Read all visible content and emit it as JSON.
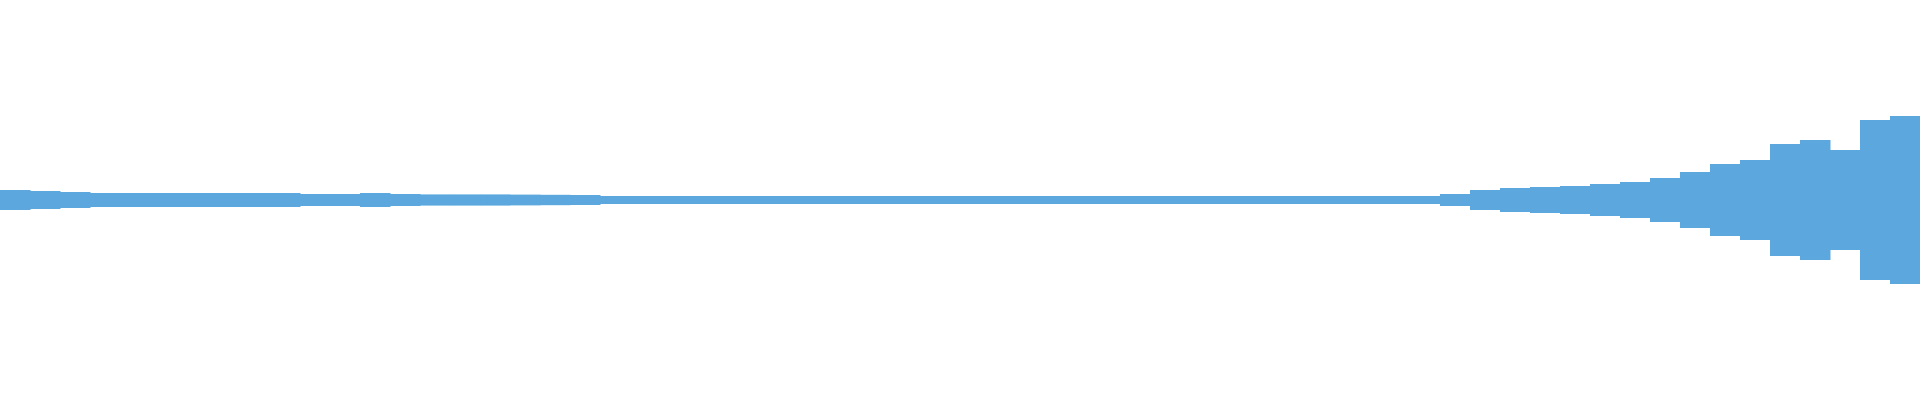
{
  "chart_data": {
    "type": "waveform",
    "color": "#5ca8de",
    "ylim": [
      -1,
      1
    ],
    "values": [
      0.05,
      0.045,
      0.04,
      0.035,
      0.035,
      0.035,
      0.035,
      0.035,
      0.035,
      0.035,
      0.03,
      0.03,
      0.035,
      0.03,
      0.028,
      0.028,
      0.028,
      0.027,
      0.026,
      0.025,
      0.02,
      0.02,
      0.02,
      0.02,
      0.02,
      0.02,
      0.02,
      0.02,
      0.02,
      0.02,
      0.02,
      0.02,
      0.02,
      0.02,
      0.02,
      0.02,
      0.02,
      0.02,
      0.02,
      0.02,
      0.02,
      0.02,
      0.02,
      0.02,
      0.02,
      0.02,
      0.02,
      0.02,
      0.03,
      0.05,
      0.06,
      0.065,
      0.07,
      0.08,
      0.09,
      0.11,
      0.14,
      0.18,
      0.2,
      0.28,
      0.3,
      0.25,
      0.4,
      0.42
    ]
  }
}
